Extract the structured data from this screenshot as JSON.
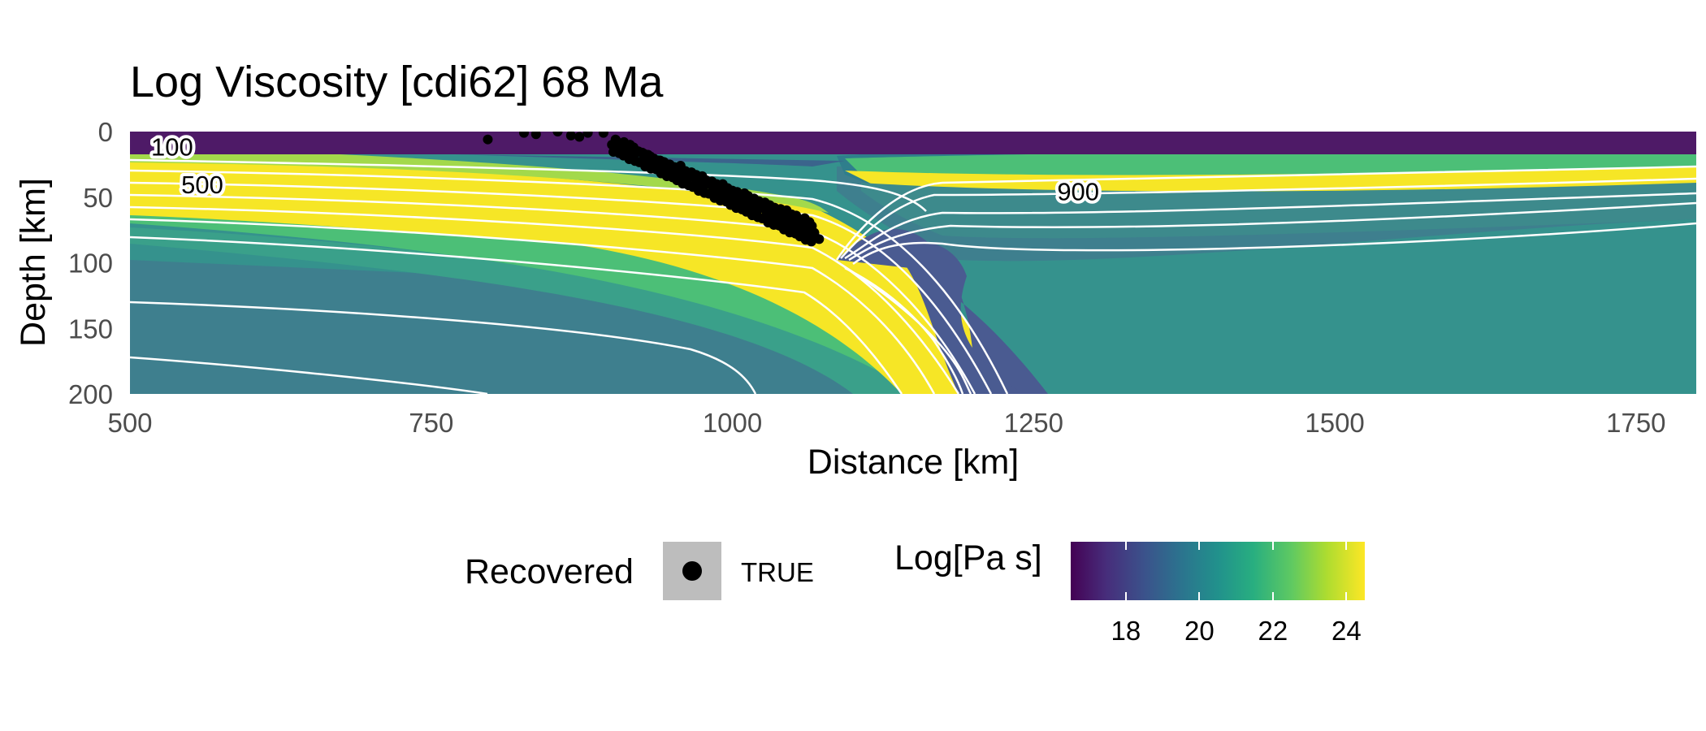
{
  "chart_data": {
    "type": "heatmap",
    "title": "Log Viscosity [cdi62] 68 Ma",
    "xlabel": "Distance [km]",
    "ylabel": "Depth [km]",
    "xlim": [
      500,
      1800
    ],
    "ylim": [
      200,
      0
    ],
    "x_ticks": [
      "500",
      "750",
      "1000",
      "1250",
      "1500",
      "1750"
    ],
    "x_tick_values": [
      500,
      750,
      1000,
      1250,
      1500,
      1750
    ],
    "y_ticks": [
      "0",
      "50",
      "100",
      "150",
      "200"
    ],
    "y_tick_values": [
      0,
      50,
      100,
      150,
      200
    ],
    "colorscale": "viridis",
    "color_range": [
      16.5,
      24.5
    ],
    "contour_labels": [
      {
        "text": "100",
        "x": 535,
        "y": 12
      },
      {
        "text": "500",
        "x": 560,
        "y": 41
      },
      {
        "text": "900",
        "x": 1287,
        "y": 46
      }
    ],
    "recovered_points": [
      [
        797,
        6
      ],
      [
        827,
        1
      ],
      [
        837,
        2
      ],
      [
        855,
        0
      ],
      [
        866,
        3
      ],
      [
        873,
        4
      ],
      [
        880,
        1
      ],
      [
        893,
        1
      ],
      [
        903,
        6
      ],
      [
        910,
        8
      ],
      [
        918,
        12
      ],
      [
        927,
        17
      ],
      [
        935,
        21
      ],
      [
        944,
        24
      ],
      [
        952,
        27
      ],
      [
        961,
        30
      ],
      [
        970,
        33
      ],
      [
        978,
        37
      ],
      [
        987,
        40
      ],
      [
        996,
        43
      ],
      [
        1004,
        46
      ],
      [
        1013,
        49
      ],
      [
        1022,
        53
      ],
      [
        1031,
        56
      ],
      [
        1040,
        59
      ],
      [
        1049,
        63
      ],
      [
        1058,
        67
      ],
      [
        1066,
        72
      ],
      [
        1072,
        82
      ],
      [
        1068,
        78
      ],
      [
        909,
        11
      ],
      [
        922,
        15
      ],
      [
        940,
        22
      ],
      [
        957,
        26
      ],
      [
        975,
        34
      ],
      [
        992,
        40
      ],
      [
        1010,
        47
      ],
      [
        1027,
        54
      ],
      [
        1045,
        60
      ],
      [
        1060,
        66
      ],
      [
        915,
        10
      ],
      [
        932,
        19
      ],
      [
        948,
        25
      ],
      [
        966,
        31
      ],
      [
        983,
        38
      ],
      [
        1000,
        45
      ],
      [
        1018,
        51
      ],
      [
        1035,
        58
      ],
      [
        1053,
        64
      ],
      [
        1064,
        69
      ]
    ]
  },
  "legend": {
    "points_title": "Recovered",
    "points_label": "TRUE",
    "color_title": "Log[Pa s]",
    "color_ticks": [
      "18",
      "20",
      "22",
      "24"
    ],
    "color_tick_values": [
      18,
      20,
      22,
      24
    ]
  }
}
